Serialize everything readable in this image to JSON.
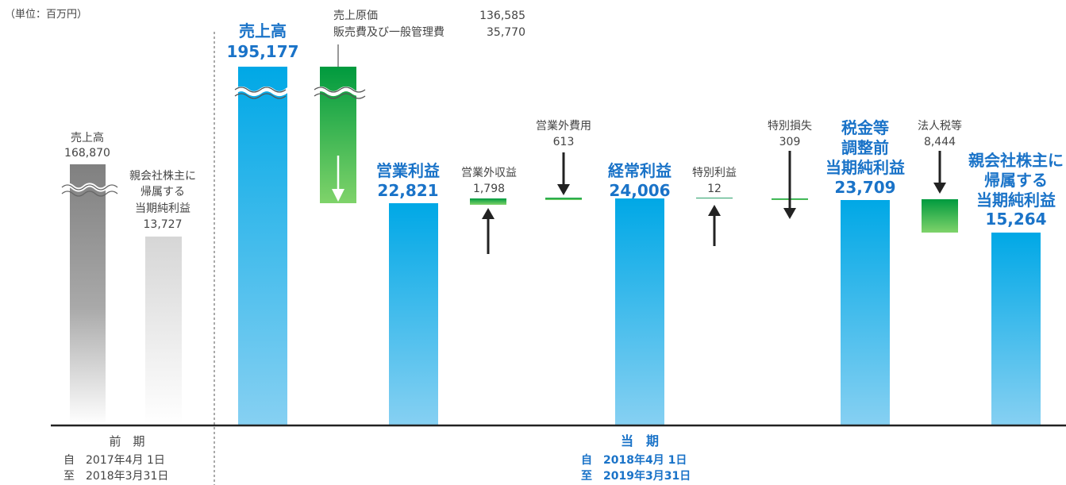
{
  "unit_label": "（単位：百万円）",
  "chart_data": {
    "type": "waterfall",
    "previous": {
      "period_title": "前　期",
      "period_from": "自　2017年4月  1日",
      "period_to": "至　2018年3月31日",
      "items": [
        {
          "label": "売上高",
          "value": 168870,
          "value_label": "168,870"
        },
        {
          "label_lines": [
            "親会社株主に",
            "帰属する",
            "当期純利益"
          ],
          "value": 13727,
          "value_label": "13,727"
        }
      ]
    },
    "current": {
      "period_title": "当　期",
      "period_from": "自　2018年4月  1日",
      "period_to": "至　2019年3月31日",
      "items": [
        {
          "label": "売上高",
          "value": 195177,
          "value_label": "195,177",
          "kind": "total"
        },
        {
          "label_lines": [
            "売上原価",
            "販売費及び一般管理費"
          ],
          "value_lines": [
            "136,585",
            "35,770"
          ],
          "values": [
            136585,
            35770
          ],
          "kind": "decrease"
        },
        {
          "label": "営業利益",
          "value": 22821,
          "value_label": "22,821",
          "kind": "total"
        },
        {
          "label": "営業外収益",
          "value": 1798,
          "value_label": "1,798",
          "kind": "increase"
        },
        {
          "label": "営業外費用",
          "value": 613,
          "value_label": "613",
          "kind": "decrease"
        },
        {
          "label": "経常利益",
          "value": 24006,
          "value_label": "24,006",
          "kind": "total"
        },
        {
          "label": "特別利益",
          "value": 12,
          "value_label": "12",
          "kind": "increase"
        },
        {
          "label": "特別損失",
          "value": 309,
          "value_label": "309",
          "kind": "decrease"
        },
        {
          "label_lines": [
            "税金等",
            "調整前",
            "当期純利益"
          ],
          "value": 23709,
          "value_label": "23,709",
          "kind": "total"
        },
        {
          "label": "法人税等",
          "value": 8444,
          "value_label": "8,444",
          "kind": "decrease"
        },
        {
          "label_lines": [
            "親会社株主に",
            "帰属する",
            "当期純利益"
          ],
          "value": 15264,
          "value_label": "15,264",
          "kind": "total"
        }
      ]
    },
    "axis_break": true,
    "grid": false
  }
}
